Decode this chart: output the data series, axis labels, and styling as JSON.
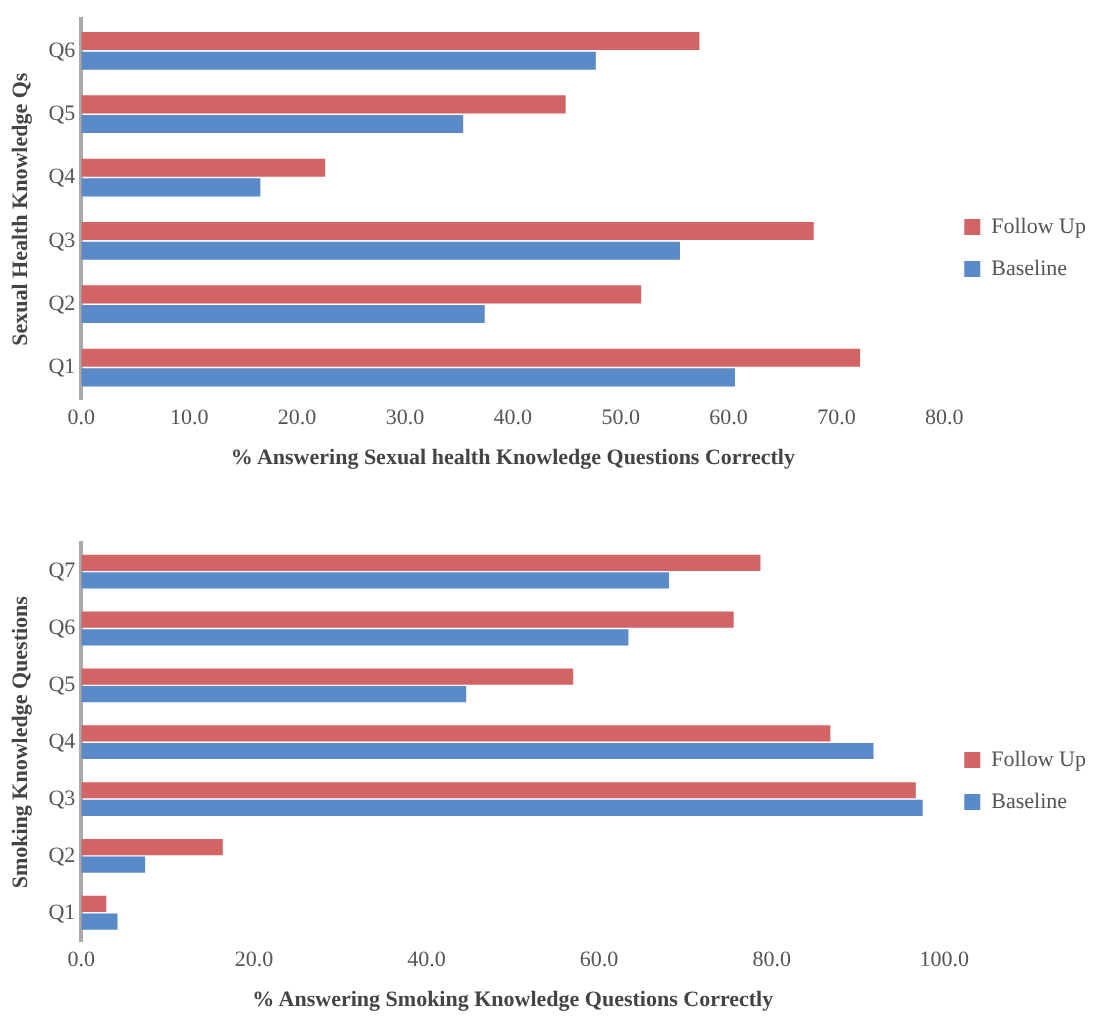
{
  "chart_data": [
    {
      "type": "bar",
      "orientation": "horizontal",
      "xlabel": "% Answering Sexual health Knowledge Questions Correctly",
      "ylabel": "Sexual Health Knowledge Qs",
      "categories": [
        "Q6",
        "Q5",
        "Q4",
        "Q3",
        "Q2",
        "Q1"
      ],
      "series": [
        {
          "name": "Follow Up",
          "color": "#d26466",
          "values": [
            57.3,
            44.9,
            22.6,
            67.9,
            51.9,
            72.2
          ]
        },
        {
          "name": "Baseline",
          "color": "#5b8ac8",
          "values": [
            47.7,
            35.4,
            16.6,
            55.5,
            37.4,
            60.6
          ]
        }
      ],
      "xlim": [
        0,
        80
      ],
      "xticks": [
        {
          "value": 0,
          "label": "0.0"
        },
        {
          "value": 10,
          "label": "10.0"
        },
        {
          "value": 20,
          "label": "20.0"
        },
        {
          "value": 30,
          "label": "30.0"
        },
        {
          "value": 40,
          "label": "40.0"
        },
        {
          "value": 50,
          "label": "50.0"
        },
        {
          "value": 60,
          "label": "60.0"
        },
        {
          "value": 70,
          "label": "70.0"
        },
        {
          "value": 80,
          "label": "80.0"
        }
      ],
      "grid": false,
      "legend": "right"
    },
    {
      "type": "bar",
      "orientation": "horizontal",
      "xlabel": "% Answering Smoking Knowledge Questions Correctly",
      "ylabel": "Smoking Knowledge Questions",
      "categories": [
        "Q7",
        "Q6",
        "Q5",
        "Q4",
        "Q3",
        "Q2",
        "Q1"
      ],
      "series": [
        {
          "name": "Follow Up",
          "color": "#d26466",
          "values": [
            78.7,
            75.6,
            57.0,
            86.8,
            96.7,
            16.4,
            2.9
          ]
        },
        {
          "name": "Baseline",
          "color": "#5b8ac8",
          "values": [
            68.1,
            63.4,
            44.6,
            91.8,
            97.5,
            7.4,
            4.2
          ]
        }
      ],
      "xlim": [
        0,
        100
      ],
      "xticks": [
        {
          "value": 0,
          "label": "0.0"
        },
        {
          "value": 20,
          "label": "20.0"
        },
        {
          "value": 40,
          "label": "40.0"
        },
        {
          "value": 60,
          "label": "60.0"
        },
        {
          "value": 80,
          "label": "80.0"
        },
        {
          "value": 100,
          "label": "100.0"
        }
      ],
      "grid": false,
      "legend": "right"
    }
  ]
}
